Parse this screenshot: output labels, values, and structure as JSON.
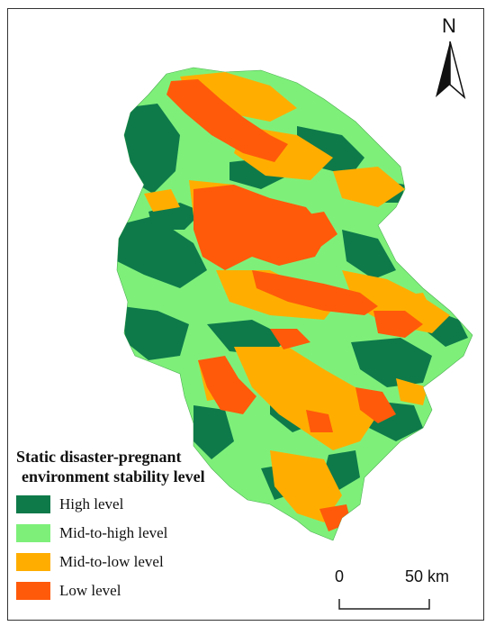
{
  "map": {
    "north_label": "N",
    "legend": {
      "title_line1": "Static disaster-pregnant",
      "title_line2": "environment  stability level",
      "items": [
        {
          "label": "High level",
          "color": "#0e7a4a"
        },
        {
          "label": "Mid-to-high level",
          "color": "#7ef07a"
        },
        {
          "label": "Mid-to-low level",
          "color": "#ffae00"
        },
        {
          "label": "Low level",
          "color": "#ff5a0a"
        }
      ]
    },
    "scale": {
      "start_label": "0",
      "end_label": "50 km"
    }
  }
}
